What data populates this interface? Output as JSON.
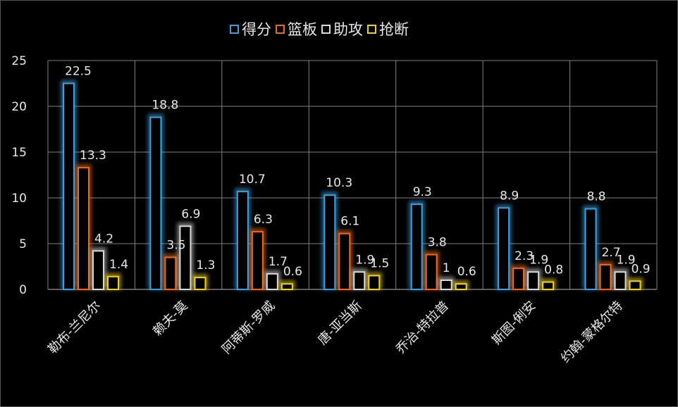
{
  "chart_data": {
    "type": "bar",
    "categories": [
      "勒布-兰尼尔",
      "赖夫-莫",
      "阿蒂斯-罗威",
      "唐-亚当斯",
      "乔治-特拉普",
      "斯图-俐安",
      "约翰-蒙格尔特"
    ],
    "series": [
      {
        "name": "得分",
        "color": "#3f9fe0",
        "values": [
          22.5,
          18.8,
          10.7,
          10.3,
          9.3,
          8.9,
          8.8
        ],
        "labels": [
          "22.5",
          "18.8",
          "10.7",
          "10.3",
          "9.3",
          "8.9",
          "8.8"
        ]
      },
      {
        "name": "篮板",
        "color": "#ea6a1e",
        "values": [
          13.3,
          3.5,
          6.3,
          6.1,
          3.8,
          2.3,
          2.7
        ],
        "labels": [
          "13.3",
          "3.5",
          "6.3",
          "6.1",
          "3.8",
          "2.3",
          "2.7"
        ]
      },
      {
        "name": "助攻",
        "color": "#d8d8d8",
        "values": [
          4.2,
          6.9,
          1.7,
          1.9,
          1.0,
          1.9,
          1.9
        ],
        "labels": [
          "4.2",
          "6.9",
          "1.7",
          "1.9",
          "1",
          "1.9",
          "1.9"
        ]
      },
      {
        "name": "抢断",
        "color": "#f0d020",
        "values": [
          1.4,
          1.3,
          0.6,
          1.5,
          0.6,
          0.8,
          0.9
        ],
        "labels": [
          "1.4",
          "1.3",
          "0.6",
          "1.5",
          "0.6",
          "0.8",
          "0.9"
        ]
      }
    ],
    "ylim": [
      0,
      25
    ],
    "yticks": [
      0,
      5,
      10,
      15,
      20,
      25
    ],
    "grid": true,
    "legend": "top-center"
  }
}
